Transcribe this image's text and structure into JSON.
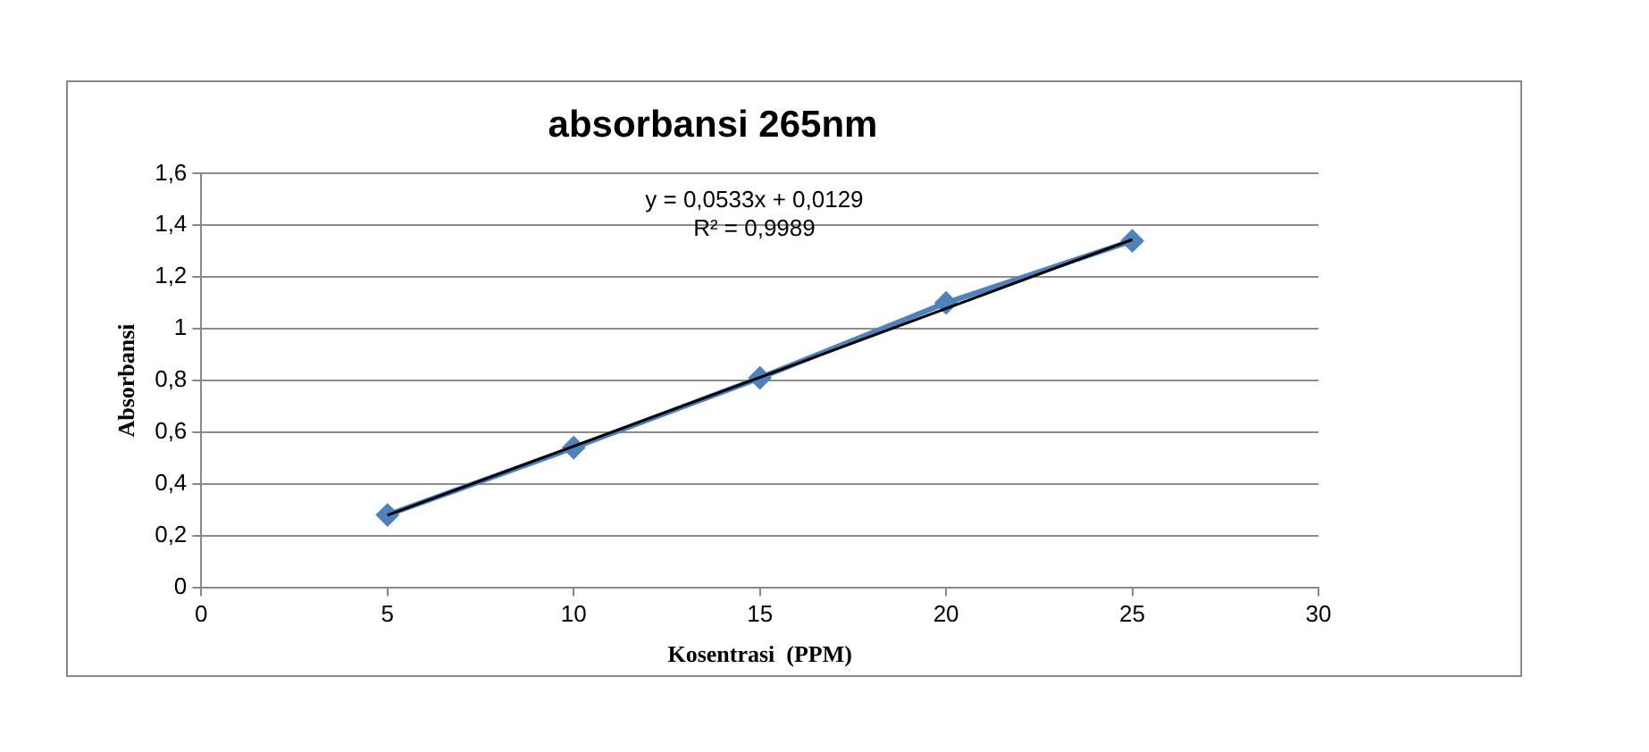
{
  "chart_data": {
    "type": "line",
    "title": "absorbansi 265nm",
    "xlabel": "Kosentrasi  (PPM)",
    "ylabel": "Absorbansi",
    "xlim": [
      0,
      30
    ],
    "xticks": [
      0,
      5,
      10,
      15,
      20,
      25,
      30
    ],
    "ylim": [
      0,
      1.6
    ],
    "yticks": [
      0,
      {
        "value": 0.2,
        "label": "0,2"
      },
      {
        "value": 0.4,
        "label": "0,4"
      },
      {
        "value": 0.6,
        "label": "0,6"
      },
      {
        "value": 0.8,
        "label": "0,8"
      },
      1,
      {
        "value": 1.2,
        "label": "1,2"
      },
      {
        "value": 1.4,
        "label": "1,4"
      },
      {
        "value": 1.6,
        "label": "1,6"
      }
    ],
    "grid": "y",
    "annotations": [
      "y = 0,0533x + 0,0129",
      "R² = 0,9989"
    ],
    "series": [
      {
        "type": "line",
        "color": "#4f81bd",
        "marker": "diamond",
        "x": [
          5,
          10,
          15,
          20,
          25
        ],
        "values": [
          0.28,
          0.54,
          0.81,
          1.1,
          1.34
        ]
      },
      {
        "type": "line",
        "color": "#000000",
        "marker": "none",
        "x": [
          5,
          25
        ],
        "values": [
          0.279,
          1.345
        ]
      }
    ]
  }
}
